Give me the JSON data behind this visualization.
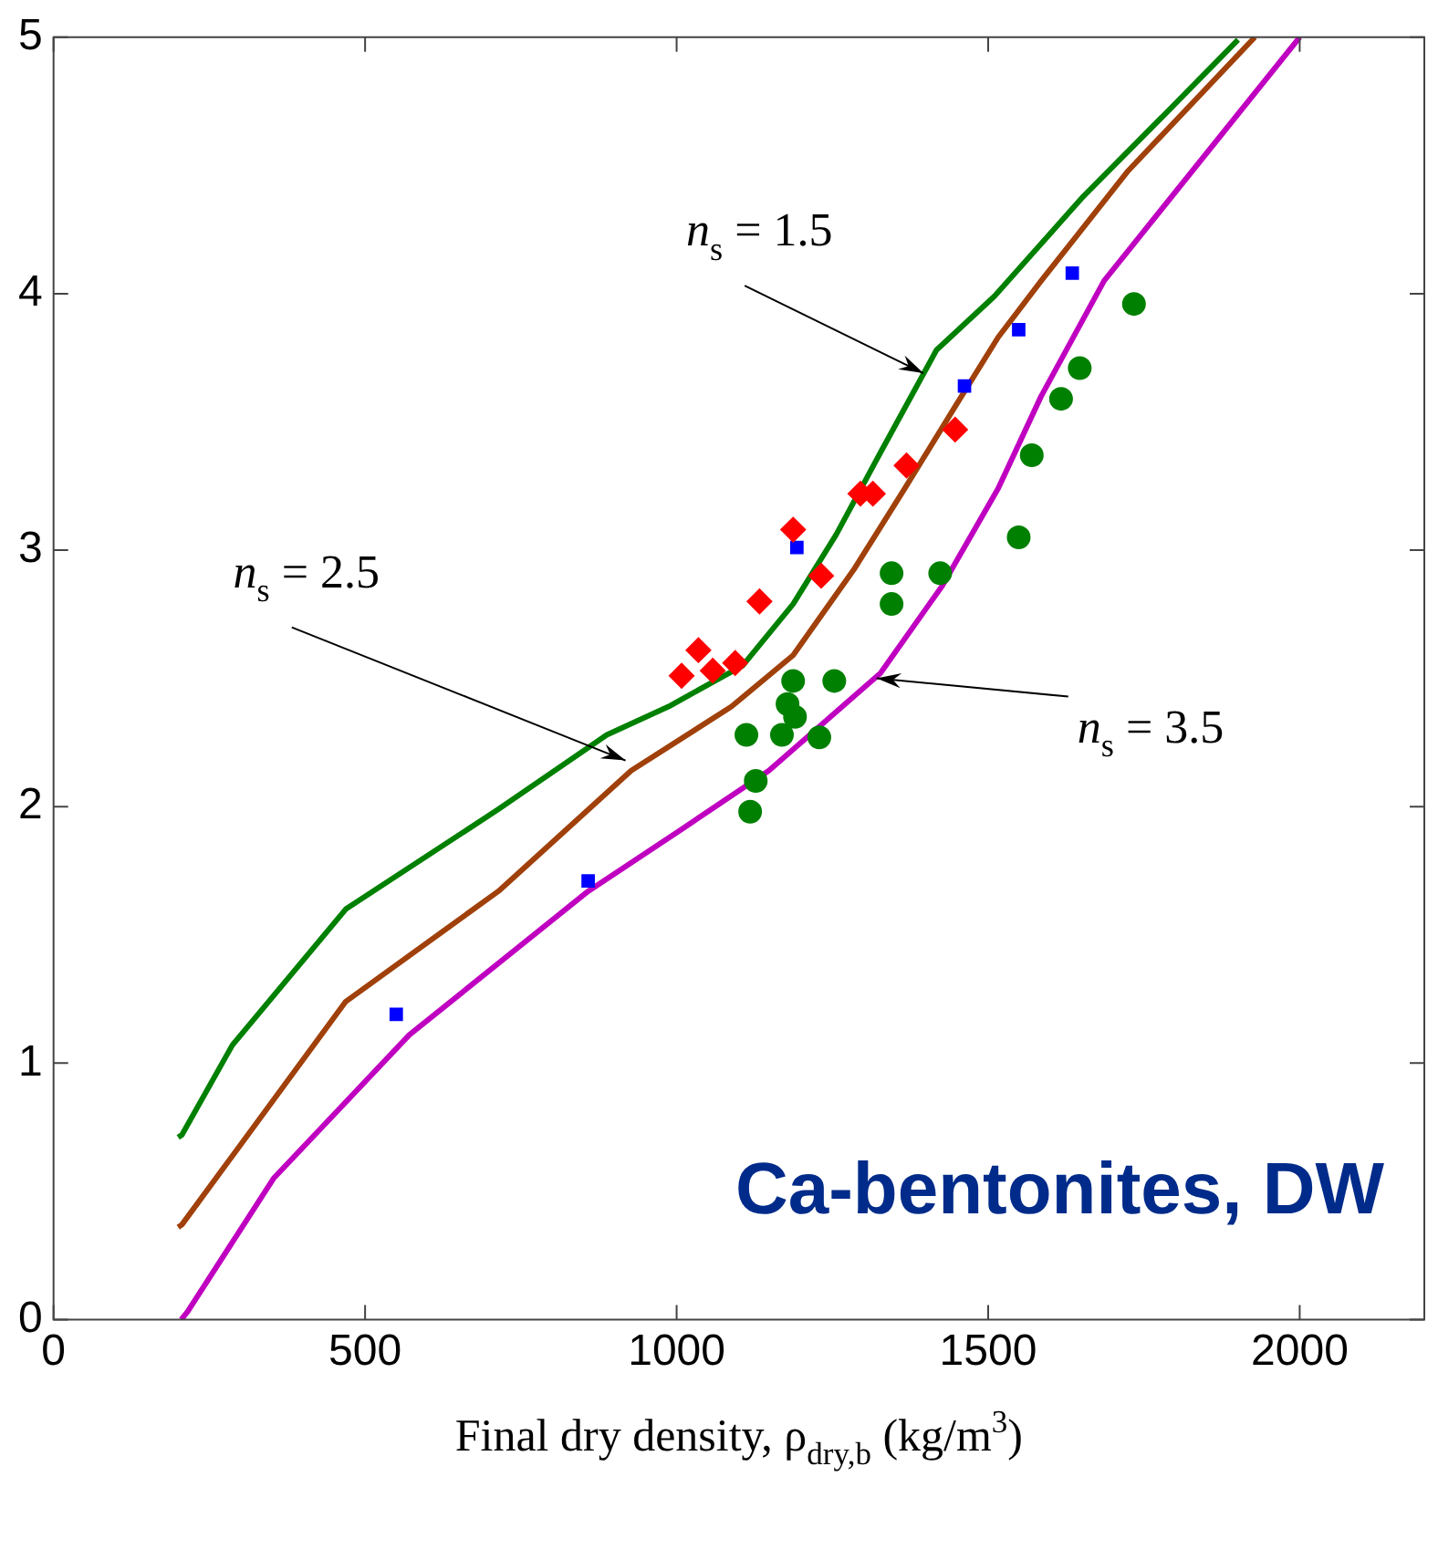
{
  "chart_data": {
    "type": "scatter",
    "title": "Ca-bentonites, DW",
    "xlabel": "Final dry density, ρ$_{dry,b}$ (kg/m$^{3}$)",
    "xlim": [
      0,
      2200
    ],
    "xticks": [
      0,
      500,
      1000,
      1500,
      2000
    ],
    "ylim": [
      0,
      5
    ],
    "yticks": [
      0,
      1,
      2,
      3,
      4,
      5
    ],
    "grid": false,
    "series": [
      {
        "type": "line",
        "color": "#008000",
        "marker": "none",
        "x": [
          200,
          206,
          287,
          469,
          714,
          888,
          987,
          1106,
          1187,
          1256,
          1327,
          1417,
          1510,
          1653,
          1800,
          1901
        ],
        "values": [
          0.71,
          0.72,
          1.07,
          1.6,
          1.99,
          2.28,
          2.39,
          2.55,
          2.79,
          3.06,
          3.38,
          3.78,
          3.99,
          4.38,
          4.74,
          4.99
        ]
      },
      {
        "type": "line",
        "color": "#a0400a",
        "marker": "none",
        "x": [
          200,
          206,
          469,
          714,
          927,
          1088,
          1187,
          1286,
          1366,
          1447,
          1516,
          1585,
          1725,
          1928
        ],
        "values": [
          0.36,
          0.37,
          1.24,
          1.67,
          2.14,
          2.39,
          2.59,
          2.93,
          3.24,
          3.56,
          3.83,
          4.05,
          4.48,
          5.0
        ]
      },
      {
        "type": "line",
        "color": "#c000c0",
        "marker": "none",
        "x": [
          205,
          215,
          353,
          571,
          858,
          1007,
          1148,
          1327,
          1426,
          1516,
          1585,
          1686,
          2000
        ],
        "values": [
          0,
          0.03,
          0.55,
          1.11,
          1.67,
          1.91,
          2.14,
          2.52,
          2.86,
          3.24,
          3.6,
          4.05,
          5.0
        ]
      },
      {
        "type": "scatter",
        "color": "#ff0000",
        "marker": "diamond",
        "x": [
          1008,
          1035,
          1058,
          1094,
          1133,
          1187,
          1232,
          1295,
          1315,
          1369,
          1447
        ],
        "values": [
          2.51,
          2.61,
          2.53,
          2.56,
          2.8,
          3.08,
          2.9,
          3.22,
          3.22,
          3.33,
          3.47
        ]
      },
      {
        "type": "scatter",
        "color": "#0000ff",
        "marker": "square",
        "x": [
          550,
          858,
          1193,
          1462,
          1549,
          1635
        ],
        "values": [
          1.19,
          1.71,
          3.01,
          3.64,
          3.86,
          4.08
        ]
      },
      {
        "type": "scatter",
        "color": "#008000",
        "marker": "circle",
        "x": [
          1734,
          1647,
          1617,
          1570,
          1549,
          1345,
          1423,
          1345,
          1187,
          1253,
          1178,
          1190,
          1112,
          1169,
          1229,
          1127,
          1118
        ],
        "values": [
          3.96,
          3.71,
          3.59,
          3.37,
          3.05,
          2.91,
          2.91,
          2.79,
          2.49,
          2.49,
          2.4,
          2.35,
          2.28,
          2.28,
          2.27,
          2.1,
          1.98
        ]
      }
    ],
    "annotations": [
      {
        "text": "n$_{s}$ = 1.5",
        "x": 1396,
        "y": 3.69
      },
      {
        "text": "n$_{s}$ = 2.5",
        "x": 918,
        "y": 2.18
      },
      {
        "text": "n$_{s}$ = 3.5",
        "x": 1321,
        "y": 2.5
      }
    ]
  }
}
